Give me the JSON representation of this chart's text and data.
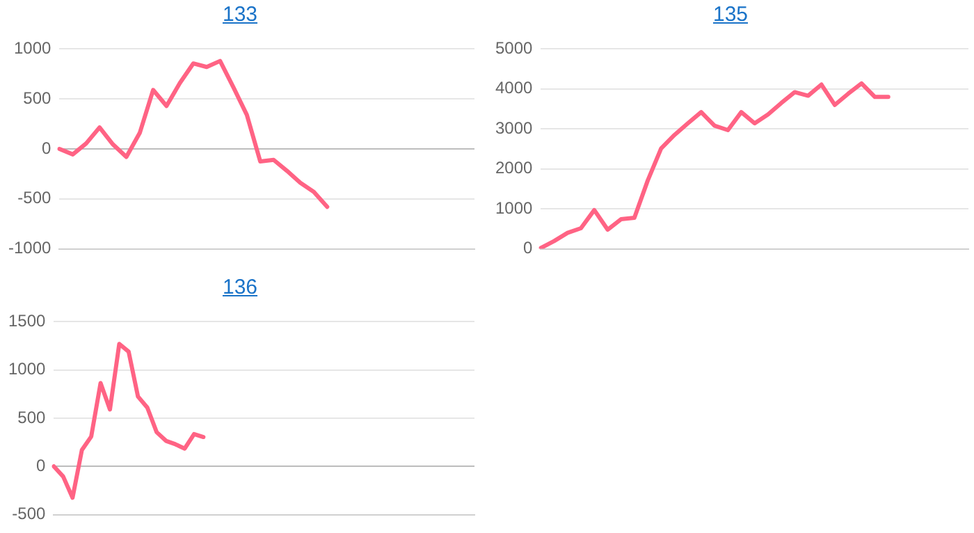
{
  "chart_data": [
    {
      "type": "line",
      "title": "133",
      "categories": [
        null,
        null,
        null,
        null,
        null,
        null,
        null,
        null,
        null,
        null,
        null,
        null,
        null,
        null,
        null,
        null,
        null,
        null,
        null,
        null,
        null,
        null,
        null,
        null,
        null,
        null,
        null,
        null,
        null,
        null,
        null,
        null
      ],
      "series": [
        {
          "color": "#ff6384",
          "values": [
            0,
            -55,
            55,
            215,
            45,
            -80,
            160,
            590,
            430,
            660,
            855,
            820,
            880,
            615,
            340,
            -125,
            -110,
            -220,
            -340,
            -430,
            -580,
            null,
            null,
            null,
            null,
            null,
            null,
            null,
            null,
            null,
            null,
            null
          ]
        }
      ],
      "ylim": [
        -1000,
        1000
      ],
      "yticks": [
        -1000,
        -500,
        0,
        500,
        1000
      ],
      "grid": "y",
      "tick_labels": "y",
      "marker": "none",
      "line_style": "solid"
    },
    {
      "type": "line",
      "title": "135",
      "categories": [
        null,
        null,
        null,
        null,
        null,
        null,
        null,
        null,
        null,
        null,
        null,
        null,
        null,
        null,
        null,
        null,
        null,
        null,
        null,
        null,
        null,
        null,
        null,
        null,
        null,
        null,
        null,
        null,
        null,
        null,
        null,
        null,
        null
      ],
      "series": [
        {
          "color": "#ff6384",
          "values": [
            20,
            195,
            400,
            515,
            970,
            480,
            740,
            775,
            1710,
            2510,
            2850,
            3140,
            3420,
            3080,
            2970,
            3420,
            3140,
            3360,
            3650,
            3920,
            3830,
            4110,
            3600,
            3880,
            4140,
            3800,
            3800,
            null,
            null,
            null,
            null,
            null,
            null
          ]
        }
      ],
      "ylim": [
        0,
        5000
      ],
      "yticks": [
        0,
        1000,
        2000,
        3000,
        4000,
        5000
      ],
      "grid": "y",
      "tick_labels": "y",
      "marker": "none",
      "line_style": "solid"
    },
    {
      "type": "line",
      "title": "136",
      "categories": [
        null,
        null,
        null,
        null,
        null,
        null,
        null,
        null,
        null,
        null,
        null,
        null,
        null,
        null,
        null,
        null,
        null,
        null,
        null,
        null,
        null,
        null,
        null,
        null,
        null,
        null,
        null,
        null,
        null,
        null,
        null,
        null,
        null,
        null,
        null,
        null,
        null,
        null,
        null,
        null,
        null,
        null,
        null,
        null,
        null,
        null
      ],
      "series": [
        {
          "color": "#ff6384",
          "values": [
            0,
            -105,
            -325,
            170,
            310,
            865,
            590,
            1270,
            1190,
            725,
            610,
            355,
            265,
            230,
            185,
            335,
            305,
            null,
            null,
            null,
            null,
            null,
            null,
            null,
            null,
            null,
            null,
            null,
            null,
            null,
            null,
            null,
            null,
            null,
            null,
            null,
            null,
            null,
            null,
            null,
            null,
            null,
            null,
            null,
            null,
            null
          ]
        }
      ],
      "ylim": [
        -500,
        1500
      ],
      "yticks": [
        -500,
        0,
        500,
        1000,
        1500
      ],
      "grid": "y",
      "tick_labels": "y",
      "marker": "none",
      "line_style": "solid"
    }
  ]
}
